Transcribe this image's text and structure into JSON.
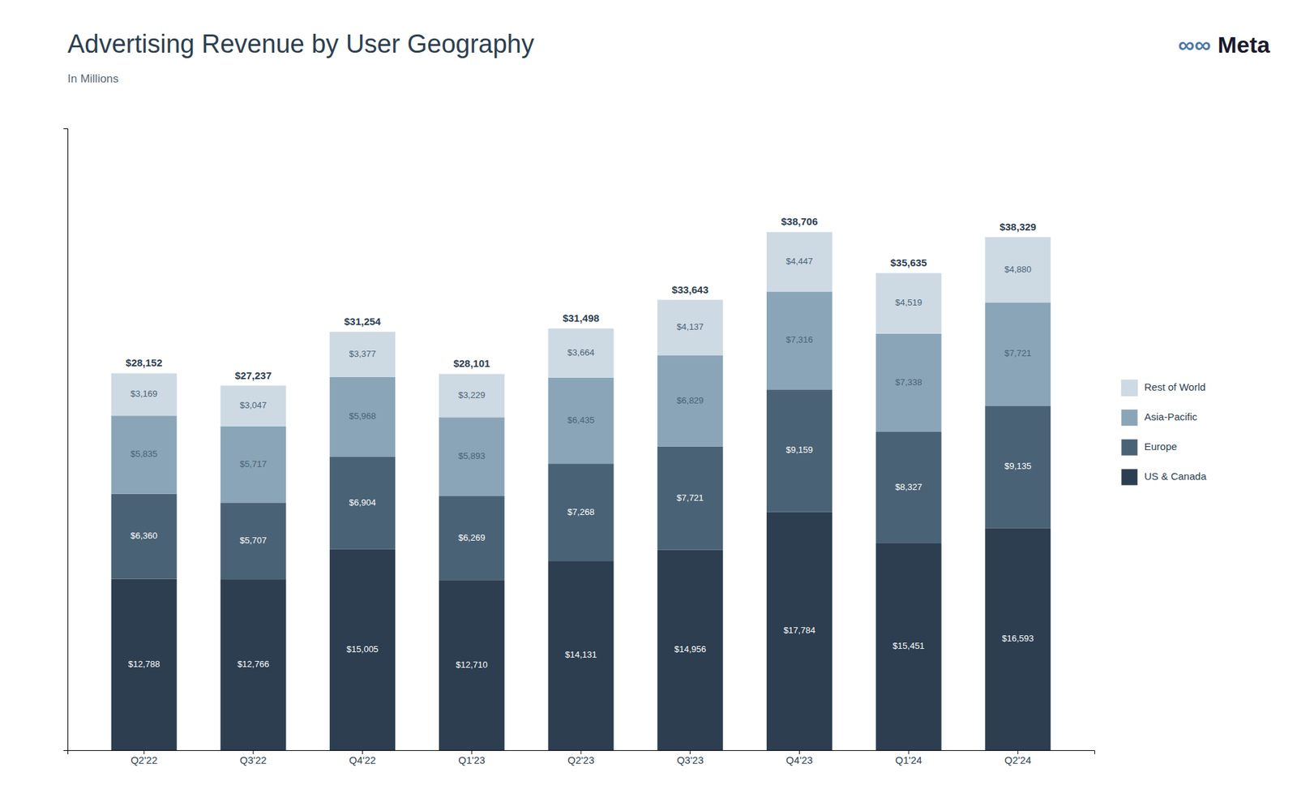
{
  "chart_data": {
    "type": "bar",
    "title": "Advertising Revenue by User Geography",
    "subtitle": "In Millions",
    "annotations": [
      "∞∞",
      "Meta"
    ],
    "categories": [
      "Q2'22",
      "Q3'22",
      "Q4'22",
      "Q1'23",
      "Q2'23",
      "Q3'23",
      "Q4'23",
      "Q1'24",
      "Q2'24"
    ],
    "series": [
      {
        "name": "US & Canada",
        "color": "#2c3e50",
        "values": [
          12788,
          12766,
          15005,
          12710,
          14131,
          14956,
          17784,
          15451,
          16593
        ],
        "value_labels": [
          "$12,788",
          "$12,766",
          "$15,005",
          "$12,710",
          "$14,131",
          "$14,956",
          "$17,784",
          "$15,451",
          "$16,593"
        ]
      },
      {
        "name": "Europe",
        "color": "#4a6275",
        "values": [
          6360,
          5707,
          6904,
          6269,
          7268,
          7721,
          9159,
          8327,
          9135
        ],
        "value_labels": [
          "$6,360",
          "$5,707",
          "$6,904",
          "$6,269",
          "$7,268",
          "$7,721",
          "$9,159",
          "$8,327",
          "$9,135"
        ]
      },
      {
        "name": "Asia-Pacific",
        "color": "#8aa5b8",
        "values": [
          5835,
          5717,
          5968,
          5893,
          6435,
          6829,
          7316,
          7338,
          7721
        ],
        "value_labels": [
          "$5,835",
          "$5,717",
          "$5,968",
          "$5,893",
          "$6,435",
          "$6,829",
          "$7,316",
          "$7,338",
          "$7,721"
        ]
      },
      {
        "name": "Rest of World",
        "color": "#cddae3",
        "values": [
          3169,
          3047,
          3377,
          3229,
          3664,
          4137,
          4447,
          4519,
          4880
        ],
        "value_labels": [
          "$3,169",
          "$3,047",
          "$3,377",
          "$3,229",
          "$3,664",
          "$4,137",
          "$4,447",
          "$4,519",
          "$4,880"
        ]
      }
    ],
    "totals": [
      28152,
      27237,
      31254,
      28101,
      31498,
      33643,
      38706,
      35635,
      38329
    ],
    "total_labels": [
      "$28,152",
      "$27,237",
      "$31,254",
      "$28,101",
      "$31,498",
      "$33,643",
      "$38,706",
      "$35,635",
      "$38,329"
    ],
    "ylim": [
      0,
      46447.2
    ],
    "stacked": true,
    "data_labels": true,
    "tick_labels": "x",
    "grid": false,
    "legend": "right"
  }
}
